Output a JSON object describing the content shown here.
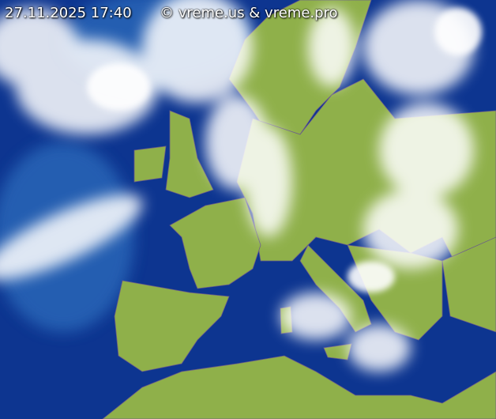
{
  "timestamp": "27.11.2025 17:40",
  "copyright": "© vreme.us & vreme.pro",
  "colors": {
    "sea": "#0b2f8a",
    "land": "#8fb04a",
    "cloud": "#ffffff",
    "borders": "#5a4a7a"
  }
}
